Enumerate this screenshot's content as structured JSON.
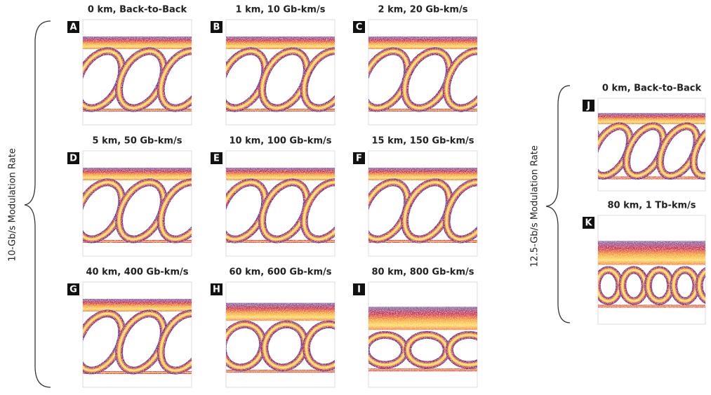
{
  "groups": [
    {
      "label": "10-Gb/s Modulation Rate",
      "panels": [
        {
          "letter": "A",
          "title": "0 km, Back-to-Back"
        },
        {
          "letter": "B",
          "title": "1 km, 10 Gb-km/s"
        },
        {
          "letter": "C",
          "title": "2 km, 20 Gb-km/s"
        },
        {
          "letter": "D",
          "title": "5 km, 50 Gb-km/s"
        },
        {
          "letter": "E",
          "title": "10 km, 100 Gb-km/s"
        },
        {
          "letter": "F",
          "title": "15 km, 150 Gb-km/s"
        },
        {
          "letter": "G",
          "title": "40 km, 400 Gb-km/s"
        },
        {
          "letter": "H",
          "title": "60 km, 600 Gb-km/s"
        },
        {
          "letter": "I",
          "title": "80 km, 800 Gb-km/s"
        }
      ]
    },
    {
      "label": "12.5-Gb/s Modulation Rate",
      "panels": [
        {
          "letter": "J",
          "title": "0 km, Back-to-Back"
        },
        {
          "letter": "K",
          "title": "80 km, 1 Tb-km/s"
        }
      ]
    }
  ]
}
